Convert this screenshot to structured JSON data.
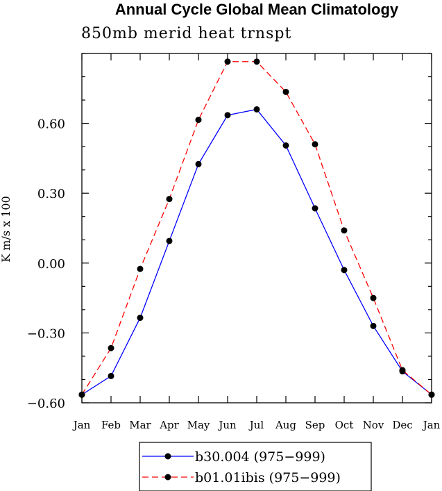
{
  "chart_data": {
    "type": "line",
    "title": "Annual Cycle Global Mean Climatology",
    "subtitle": "850mb merid heat trnspt",
    "ylabel": "K m/s x 100",
    "xlabel": "",
    "categories": [
      "Jan",
      "Feb",
      "Mar",
      "Apr",
      "May",
      "Jun",
      "Jul",
      "Aug",
      "Sep",
      "Oct",
      "Nov",
      "Dec",
      "Jan"
    ],
    "ylim": [
      -0.6,
      0.9
    ],
    "yticks": [
      -0.6,
      -0.3,
      0.0,
      0.3,
      0.6
    ],
    "ytick_labels": [
      "−0.60",
      "−0.30",
      "0.00",
      "0.30",
      "0.60"
    ],
    "series": [
      {
        "name": "b30.004 (975−999)",
        "color": "#0000ff",
        "style": "solid",
        "values": [
          -0.565,
          -0.485,
          -0.235,
          0.095,
          0.425,
          0.635,
          0.66,
          0.505,
          0.235,
          -0.03,
          -0.27,
          -0.465,
          -0.565
        ]
      },
      {
        "name": "b01.01ibis (975−999)",
        "color": "#ff0000",
        "style": "dashed",
        "values": [
          -0.565,
          -0.365,
          -0.025,
          0.275,
          0.615,
          0.865,
          0.865,
          0.735,
          0.51,
          0.14,
          -0.15,
          -0.46,
          -0.565
        ]
      }
    ]
  }
}
